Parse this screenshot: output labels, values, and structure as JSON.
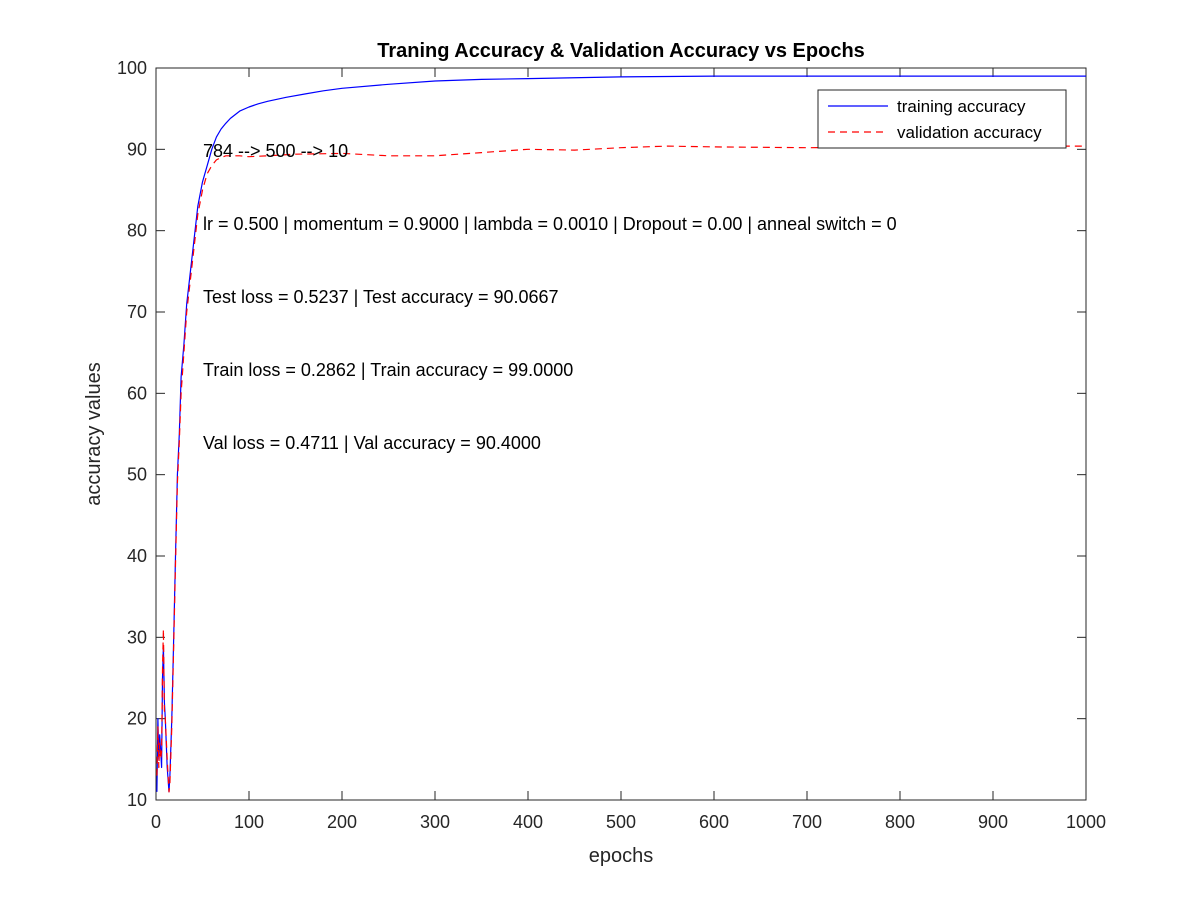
{
  "chart_data": {
    "type": "line",
    "title": "Traning Accuracy & Validation Accuracy vs Epochs",
    "xlabel": "epochs",
    "ylabel": "accuracy values",
    "xlim": [
      0,
      1000
    ],
    "ylim": [
      10,
      100
    ],
    "xticks": [
      "0",
      "100",
      "200",
      "300",
      "400",
      "500",
      "600",
      "700",
      "800",
      "900",
      "1000"
    ],
    "yticks": [
      "10",
      "20",
      "30",
      "40",
      "50",
      "60",
      "70",
      "80",
      "90",
      "100"
    ],
    "grid": false,
    "legend_position": "top-right",
    "legend": [
      "training accuracy",
      "validation accuracy"
    ],
    "annotations": [
      "784 --> 500 --> 10",
      "lr = 0.500 | momentum = 0.9000 | lambda = 0.0010 | Dropout = 0.00 | anneal switch = 0",
      "Test loss = 0.5237 | Test accuracy = 90.0667",
      "Train loss = 0.2862 | Train accuracy = 99.0000",
      "Val loss = 0.4711 | Val accuracy = 90.4000"
    ],
    "series": [
      {
        "name": "training accuracy",
        "color": "#0000ff",
        "style": "solid",
        "x": [
          1,
          2,
          3,
          4,
          5,
          6,
          7,
          8,
          9,
          10,
          12,
          14,
          15,
          17,
          19,
          21,
          23,
          25,
          27,
          30,
          33,
          36,
          40,
          45,
          50,
          55,
          60,
          65,
          70,
          75,
          80,
          90,
          100,
          110,
          120,
          140,
          160,
          180,
          200,
          250,
          300,
          350,
          400,
          500,
          600,
          700,
          800,
          900,
          1000
        ],
        "y": [
          11,
          20,
          15,
          18,
          16,
          14,
          25,
          29,
          22,
          20,
          14,
          11,
          13,
          20,
          30,
          40,
          50,
          55,
          62,
          66,
          71,
          74,
          78,
          83,
          86,
          88,
          90,
          91.5,
          92.5,
          93.2,
          93.8,
          94.7,
          95.2,
          95.6,
          95.9,
          96.4,
          96.8,
          97.2,
          97.5,
          98.0,
          98.4,
          98.6,
          98.7,
          98.9,
          99.0,
          99.0,
          99.0,
          99.0,
          99.0
        ]
      },
      {
        "name": "validation accuracy",
        "color": "#ff0000",
        "style": "dashed",
        "x": [
          1,
          2,
          3,
          4,
          5,
          6,
          7,
          8,
          9,
          10,
          12,
          14,
          15,
          17,
          19,
          21,
          23,
          25,
          27,
          30,
          33,
          36,
          40,
          45,
          50,
          55,
          60,
          65,
          70,
          75,
          80,
          90,
          100,
          120,
          150,
          200,
          250,
          300,
          350,
          400,
          450,
          500,
          550,
          600,
          700,
          800,
          900,
          1000
        ],
        "y": [
          13,
          19,
          14,
          17,
          15,
          16,
          26,
          31,
          21,
          20,
          15,
          11,
          12,
          19,
          29,
          39,
          49,
          54,
          60,
          65,
          70,
          73,
          77,
          82,
          85,
          87,
          88,
          88.7,
          89.0,
          89.2,
          89.2,
          89.2,
          89.1,
          89.2,
          89.4,
          89.5,
          89.2,
          89.2,
          89.6,
          90.0,
          89.9,
          90.2,
          90.4,
          90.3,
          90.2,
          90.3,
          90.4,
          90.4
        ]
      }
    ]
  }
}
